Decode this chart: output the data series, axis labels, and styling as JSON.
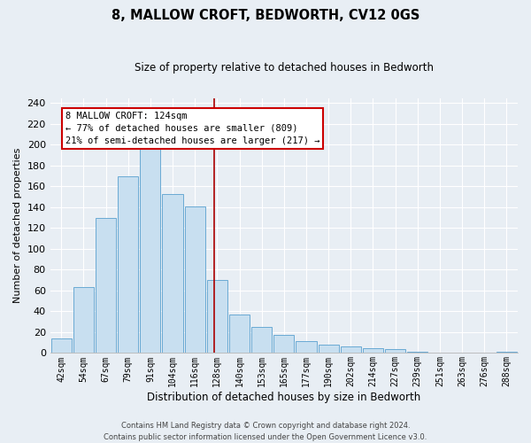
{
  "title": "8, MALLOW CROFT, BEDWORTH, CV12 0GS",
  "subtitle": "Size of property relative to detached houses in Bedworth",
  "xlabel": "Distribution of detached houses by size in Bedworth",
  "ylabel": "Number of detached properties",
  "bar_labels": [
    "42sqm",
    "54sqm",
    "67sqm",
    "79sqm",
    "91sqm",
    "104sqm",
    "116sqm",
    "128sqm",
    "140sqm",
    "153sqm",
    "165sqm",
    "177sqm",
    "190sqm",
    "202sqm",
    "214sqm",
    "227sqm",
    "239sqm",
    "251sqm",
    "263sqm",
    "276sqm",
    "288sqm"
  ],
  "bar_values": [
    14,
    63,
    130,
    170,
    200,
    153,
    141,
    70,
    37,
    25,
    17,
    11,
    8,
    6,
    5,
    4,
    1,
    0,
    0,
    0,
    1
  ],
  "bar_color": "#c8dff0",
  "bar_edge_color": "#6aaad4",
  "vline_color": "#aa0000",
  "ylim": [
    0,
    245
  ],
  "yticks": [
    0,
    20,
    40,
    60,
    80,
    100,
    120,
    140,
    160,
    180,
    200,
    220,
    240
  ],
  "annotation_title": "8 MALLOW CROFT: 124sqm",
  "annotation_line1": "← 77% of detached houses are smaller (809)",
  "annotation_line2": "21% of semi-detached houses are larger (217) →",
  "annotation_box_color": "#ffffff",
  "annotation_box_edge": "#cc0000",
  "footer_line1": "Contains HM Land Registry data © Crown copyright and database right 2024.",
  "footer_line2": "Contains public sector information licensed under the Open Government Licence v3.0.",
  "background_color": "#e8eef4",
  "grid_color": "#ffffff"
}
